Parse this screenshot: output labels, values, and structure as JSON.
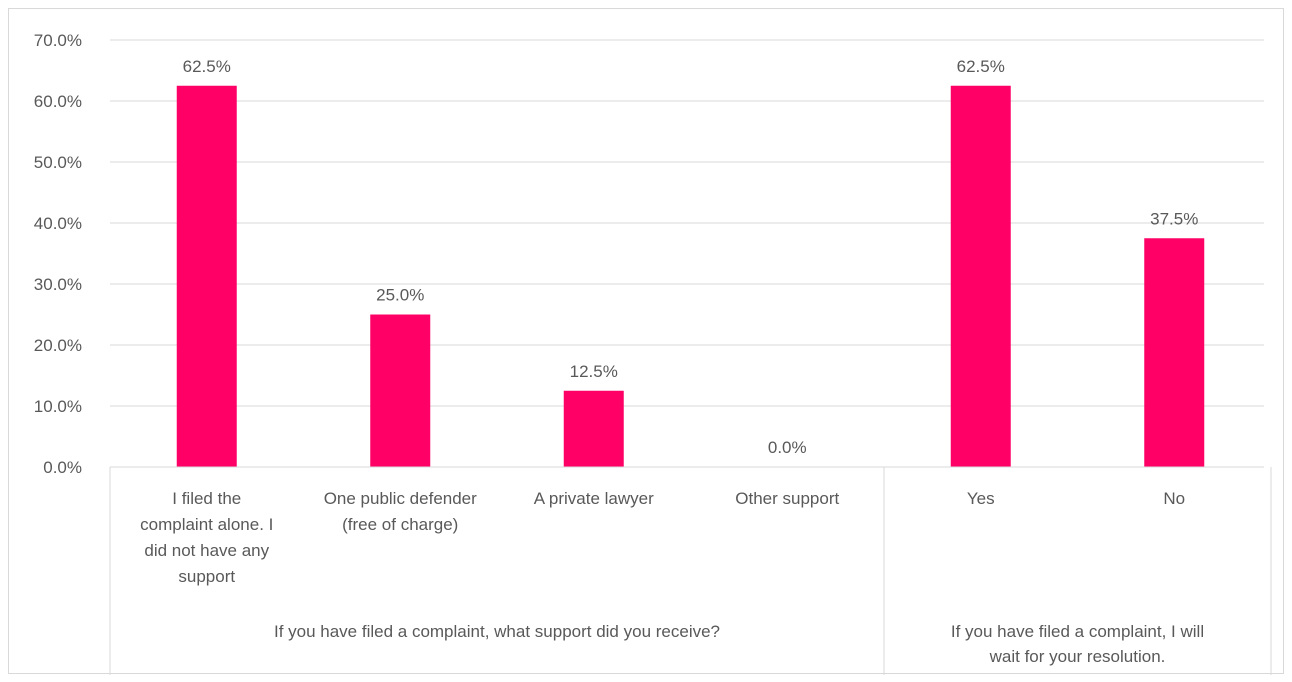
{
  "chart_data": {
    "type": "bar",
    "ylim": [
      0,
      70
    ],
    "yticks": [
      "0.0%",
      "10.0%",
      "20.0%",
      "30.0%",
      "40.0%",
      "50.0%",
      "60.0%",
      "70.0%"
    ],
    "grid": true,
    "bar_color": "#ff0066",
    "groups": [
      {
        "label": "If you have filed a complaint, what support did you receive?",
        "categories": [
          "I filed the complaint alone. I did not have any support",
          "One public defender (free of charge)",
          "A private lawyer",
          "Other support"
        ],
        "values": [
          62.5,
          25.0,
          12.5,
          0.0
        ],
        "data_labels": [
          "62.5%",
          "25.0%",
          "12.5%",
          "0.0%"
        ]
      },
      {
        "label": "If you have filed a complaint, I will wait for your resolution.",
        "categories": [
          "Yes",
          "No"
        ],
        "values": [
          62.5,
          37.5
        ],
        "data_labels": [
          "62.5%",
          "37.5%"
        ]
      }
    ]
  }
}
